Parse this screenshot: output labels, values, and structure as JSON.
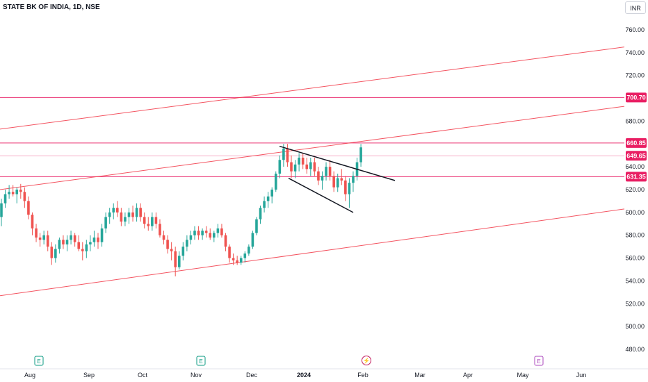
{
  "header": {
    "symbol_title": "STATE BK OF INDIA, 1D, NSE",
    "currency": "INR"
  },
  "colors": {
    "up": "#26a69a",
    "down": "#ef5350",
    "channel": "#f23645",
    "level": "#e91e63",
    "trendline": "#131722",
    "background": "#ffffff"
  },
  "chart_data": {
    "type": "candlestick",
    "title": "STATE BK OF INDIA, 1D, NSE",
    "y_axis": {
      "ticks": [
        760,
        740,
        720,
        680,
        660,
        640,
        620,
        600,
        580,
        560,
        540,
        520,
        500,
        480
      ],
      "range": [
        470,
        775
      ]
    },
    "x_axis": {
      "labels": [
        {
          "text": "Aug",
          "bold": false
        },
        {
          "text": "Sep",
          "bold": false
        },
        {
          "text": "Oct",
          "bold": false
        },
        {
          "text": "Nov",
          "bold": false
        },
        {
          "text": "Dec",
          "bold": false
        },
        {
          "text": "2024",
          "bold": true
        },
        {
          "text": "Feb",
          "bold": false
        },
        {
          "text": "Mar",
          "bold": false
        },
        {
          "text": "Apr",
          "bold": false
        },
        {
          "text": "May",
          "bold": false
        },
        {
          "text": "Jun",
          "bold": false
        }
      ]
    },
    "price_levels": [
      {
        "value": 700.7,
        "label": "700.70"
      },
      {
        "value": 660.85,
        "label": "660.85"
      },
      {
        "value": 649.65,
        "label": "649.65"
      },
      {
        "value": 631.35,
        "label": "631.35"
      }
    ],
    "channel_lines": [
      {
        "start": 673,
        "end": 745
      },
      {
        "start": 620,
        "end": 693
      },
      {
        "start": 527,
        "end": 603
      }
    ],
    "trendlines": [
      {
        "start": 658,
        "end": 628
      },
      {
        "start": 630,
        "end": 600
      }
    ],
    "candles_ohlc": [
      [
        596,
        612,
        588,
        608
      ],
      [
        608,
        620,
        604,
        616
      ],
      [
        616,
        624,
        612,
        618
      ],
      [
        618,
        624,
        614,
        616
      ],
      [
        616,
        622,
        608,
        620
      ],
      [
        620,
        625,
        612,
        618
      ],
      [
        618,
        622,
        604,
        610
      ],
      [
        610,
        614,
        594,
        598
      ],
      [
        598,
        600,
        580,
        586
      ],
      [
        586,
        590,
        574,
        578
      ],
      [
        578,
        582,
        570,
        576
      ],
      [
        576,
        584,
        572,
        580
      ],
      [
        580,
        584,
        566,
        570
      ],
      [
        570,
        574,
        554,
        560
      ],
      [
        560,
        572,
        556,
        568
      ],
      [
        568,
        578,
        564,
        576
      ],
      [
        576,
        580,
        568,
        572
      ],
      [
        572,
        580,
        566,
        576
      ],
      [
        576,
        584,
        572,
        580
      ],
      [
        580,
        582,
        570,
        574
      ],
      [
        574,
        580,
        566,
        568
      ],
      [
        568,
        574,
        558,
        566
      ],
      [
        566,
        576,
        560,
        572
      ],
      [
        572,
        580,
        566,
        574
      ],
      [
        574,
        584,
        570,
        578
      ],
      [
        578,
        582,
        568,
        574
      ],
      [
        574,
        590,
        570,
        586
      ],
      [
        586,
        600,
        582,
        596
      ],
      [
        596,
        604,
        590,
        600
      ],
      [
        600,
        608,
        594,
        604
      ],
      [
        604,
        610,
        596,
        600
      ],
      [
        600,
        604,
        588,
        592
      ],
      [
        592,
        600,
        588,
        596
      ],
      [
        596,
        604,
        590,
        600
      ],
      [
        600,
        606,
        592,
        596
      ],
      [
        596,
        608,
        592,
        604
      ],
      [
        604,
        608,
        592,
        596
      ],
      [
        596,
        600,
        586,
        590
      ],
      [
        590,
        596,
        584,
        588
      ],
      [
        588,
        600,
        584,
        596
      ],
      [
        596,
        600,
        586,
        590
      ],
      [
        590,
        594,
        578,
        580
      ],
      [
        580,
        584,
        572,
        576
      ],
      [
        576,
        580,
        564,
        568
      ],
      [
        568,
        574,
        558,
        566
      ],
      [
        566,
        570,
        544,
        552
      ],
      [
        552,
        566,
        550,
        562
      ],
      [
        562,
        574,
        558,
        570
      ],
      [
        570,
        580,
        566,
        576
      ],
      [
        576,
        584,
        572,
        580
      ],
      [
        580,
        588,
        576,
        584
      ],
      [
        584,
        588,
        576,
        580
      ],
      [
        580,
        586,
        576,
        584
      ],
      [
        584,
        588,
        578,
        582
      ],
      [
        582,
        586,
        576,
        578
      ],
      [
        578,
        584,
        574,
        582
      ],
      [
        582,
        590,
        578,
        586
      ],
      [
        586,
        590,
        578,
        580
      ],
      [
        580,
        582,
        566,
        570
      ],
      [
        570,
        572,
        556,
        560
      ],
      [
        560,
        564,
        554,
        558
      ],
      [
        558,
        562,
        554,
        556
      ],
      [
        556,
        562,
        554,
        560
      ],
      [
        560,
        566,
        556,
        564
      ],
      [
        564,
        572,
        562,
        570
      ],
      [
        570,
        584,
        568,
        582
      ],
      [
        582,
        596,
        580,
        594
      ],
      [
        594,
        606,
        590,
        604
      ],
      [
        604,
        614,
        600,
        610
      ],
      [
        610,
        618,
        604,
        614
      ],
      [
        614,
        622,
        608,
        620
      ],
      [
        620,
        636,
        618,
        634
      ],
      [
        634,
        650,
        630,
        646
      ],
      [
        646,
        660,
        640,
        656
      ],
      [
        656,
        660,
        640,
        644
      ],
      [
        644,
        650,
        630,
        636
      ],
      [
        636,
        646,
        630,
        642
      ],
      [
        642,
        652,
        636,
        648
      ],
      [
        648,
        652,
        638,
        642
      ],
      [
        642,
        648,
        634,
        638
      ],
      [
        638,
        648,
        632,
        644
      ],
      [
        644,
        648,
        632,
        636
      ],
      [
        636,
        640,
        624,
        628
      ],
      [
        628,
        636,
        620,
        632
      ],
      [
        632,
        644,
        628,
        640
      ],
      [
        640,
        646,
        628,
        632
      ],
      [
        632,
        636,
        618,
        622
      ],
      [
        622,
        634,
        618,
        630
      ],
      [
        630,
        638,
        624,
        628
      ],
      [
        628,
        632,
        610,
        616
      ],
      [
        616,
        630,
        604,
        626
      ],
      [
        626,
        636,
        618,
        632
      ],
      [
        632,
        648,
        628,
        644
      ],
      [
        644,
        660,
        640,
        657
      ]
    ],
    "events": [
      {
        "icon": "E",
        "type": "earnings"
      },
      {
        "icon": "E",
        "type": "earnings"
      },
      {
        "icon": "⚡",
        "type": "split"
      },
      {
        "icon": "E",
        "type": "earnings"
      }
    ]
  }
}
